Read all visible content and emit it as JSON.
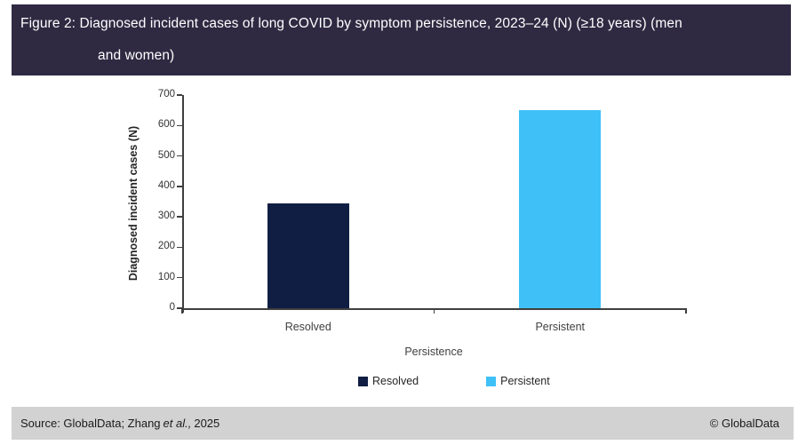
{
  "header": {
    "title_line1": "Figure 2: Diagnosed incident cases of long COVID by symptom persistence, 2023–24 (N) (≥18 years) (men",
    "title_line2": "and women)"
  },
  "chart_data": {
    "type": "bar",
    "title": "Diagnosed incident cases of long COVID by symptom persistence, 2023–24 (N) (≥18 years) (men and women)",
    "categories": [
      "Resolved",
      "Persistent"
    ],
    "series": [
      {
        "name": "Resolved",
        "value": 345,
        "color": "#101e43"
      },
      {
        "name": "Persistent",
        "value": 650,
        "color": "#3fc1f8"
      }
    ],
    "xlabel": "Persistence",
    "ylabel": "Diagnosed incident cases (N)",
    "ylim": [
      0,
      700
    ],
    "ytick_step": 100,
    "grid": false,
    "legend_position": "bottom",
    "legend": [
      "Resolved",
      "Persistent"
    ]
  },
  "footer": {
    "source_prefix": "Source: GlobalData; Zhang",
    "source_italic": "et al.,",
    "source_suffix": "2025",
    "copyright": "© GlobalData"
  },
  "colors": {
    "header_bg": "#2f2a42",
    "footer_bg": "#d2d2d2",
    "axis": "#3f3f3f",
    "bar_resolved": "#101e43",
    "bar_persistent": "#3fc1f8"
  }
}
